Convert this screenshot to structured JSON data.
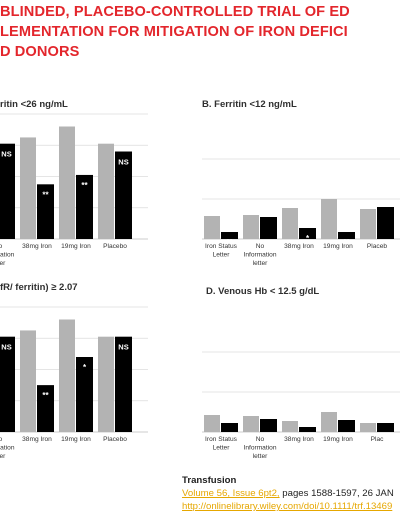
{
  "title_lines": [
    " BLINDED, PLACEBO-CONTROLLED TRIAL OF ED",
    "LEMENTATION FOR MITIGATION OF IRON DEFICI",
    "D DONORS"
  ],
  "chart_data": [
    {
      "type": "bar",
      "title": "ritin <26 ng/mL",
      "categories": [
        [
          "s"
        ],
        [
          "No",
          "information",
          "letter"
        ],
        [
          "38mg Iron"
        ],
        [
          "19mg Iron"
        ],
        [
          "Placebo"
        ]
      ],
      "series": [
        {
          "values": [
            61,
            61,
            65,
            72,
            61
          ]
        },
        {
          "values": [
            null,
            61,
            35,
            41,
            56
          ]
        }
      ],
      "labels": [
        "",
        "NS",
        "**",
        "**",
        "NS"
      ],
      "ylim": [
        0,
        80
      ]
    },
    {
      "type": "bar",
      "title": "B. Ferritin <12 ng/mL",
      "categories": [
        [
          "Iron Status",
          "Letter"
        ],
        [
          "No",
          "Information",
          "letter"
        ],
        [
          "38mg Iron"
        ],
        [
          "19mg Iron"
        ],
        [
          "Placeb"
        ]
      ],
      "series": [
        {
          "values": [
            23,
            24,
            31,
            40,
            30
          ]
        },
        {
          "values": [
            7,
            22,
            11,
            7,
            32
          ]
        }
      ],
      "labels": [
        "**",
        "",
        "*",
        "**",
        ""
      ],
      "ylim": [
        0,
        80
      ]
    },
    {
      "type": "bar",
      "title": "fR/ ferritin) ≥ 2.07",
      "categories": [
        [
          "s"
        ],
        [
          "No",
          "Information",
          "letter"
        ],
        [
          "38mg Iron"
        ],
        [
          "19mg Iron"
        ],
        [
          "Placebo"
        ]
      ],
      "series": [
        {
          "values": [
            61,
            61,
            65,
            72,
            61
          ]
        },
        {
          "values": [
            null,
            61,
            30,
            48,
            61
          ]
        }
      ],
      "labels": [
        "",
        "NS",
        "**",
        "*",
        "NS"
      ],
      "ylim": [
        0,
        80
      ]
    },
    {
      "type": "bar",
      "title": "D. Venous Hb < 12.5 g/dL",
      "categories": [
        [
          "Iron Status",
          "Letter"
        ],
        [
          "No",
          "Information",
          "letter"
        ],
        [
          "38mg Iron"
        ],
        [
          "19mg Iron"
        ],
        [
          "Plac"
        ]
      ],
      "series": [
        {
          "values": [
            17,
            16,
            11,
            20,
            9
          ]
        },
        {
          "values": [
            9,
            13,
            5,
            12,
            9
          ]
        }
      ],
      "labels": [
        "",
        "",
        "",
        "",
        ""
      ],
      "ylim": [
        0,
        80
      ]
    }
  ],
  "citation": {
    "journal": "Transfusion",
    "volume_link": "Volume 56, Issue 6pt2,",
    "pages_text": " pages 1588-1597, 26 JAN",
    "url": "http://onlinelibrary.wiley.com/doi/10.1111/trf.13469"
  },
  "colors": {
    "gray": "#b3b3b3",
    "black": "#000000",
    "title": "#e3262c",
    "link": "#e6a700"
  }
}
